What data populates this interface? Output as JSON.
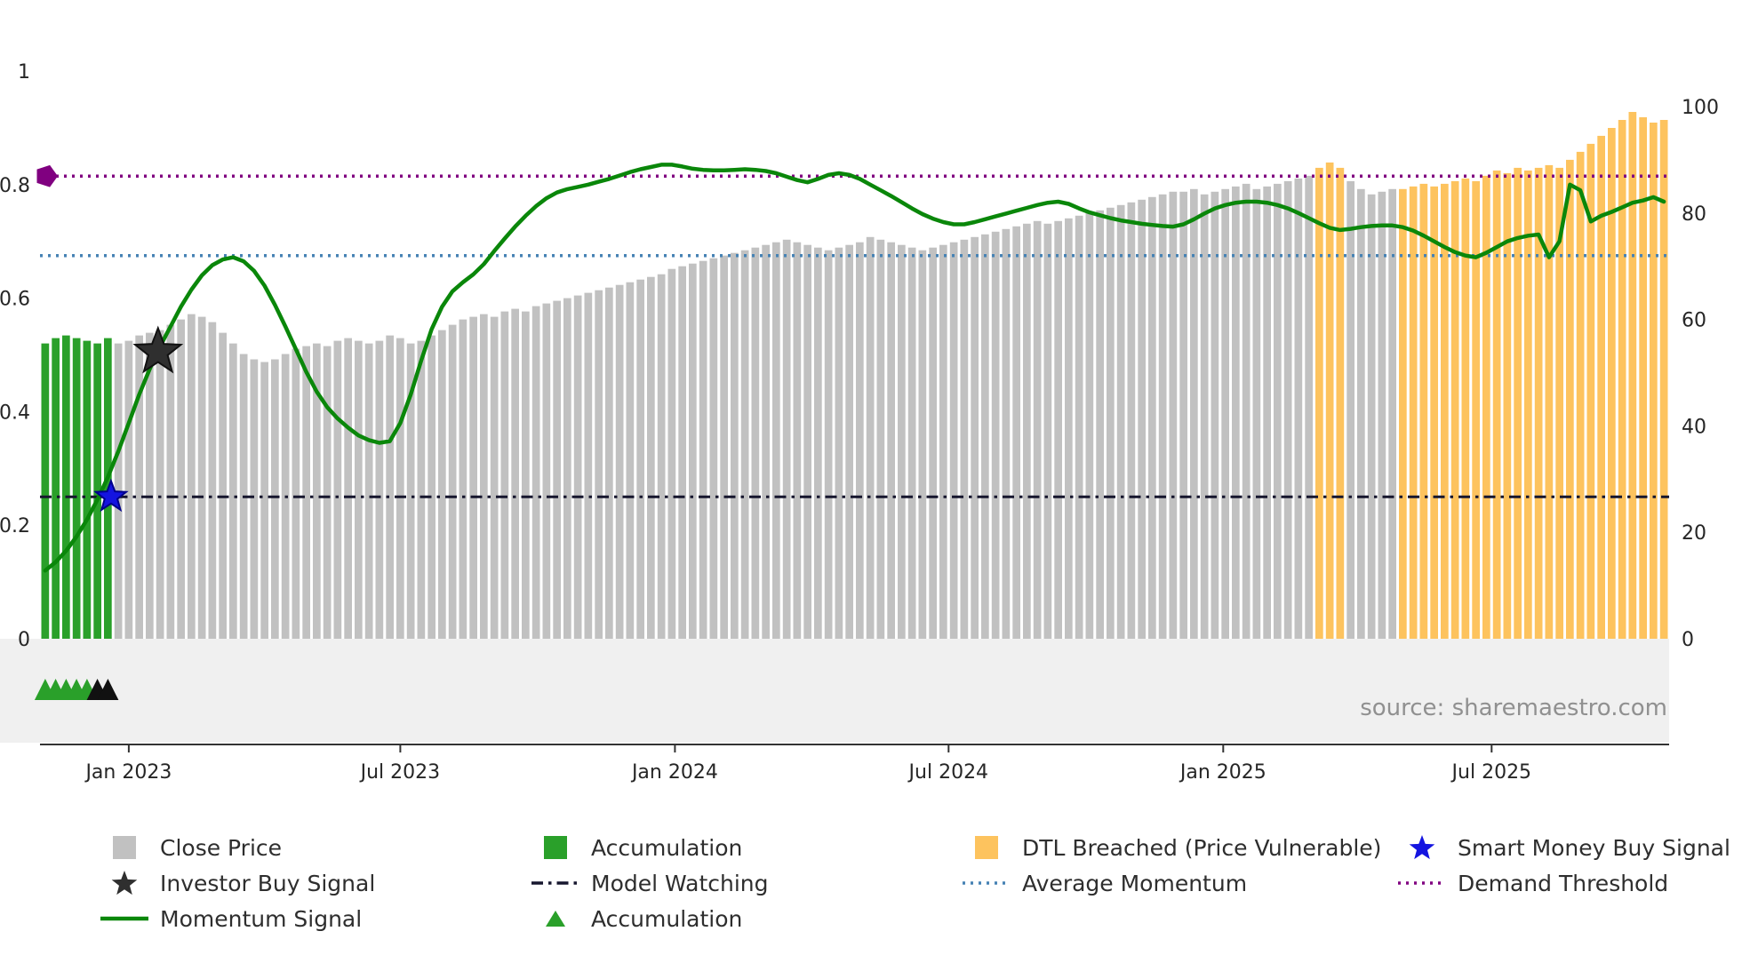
{
  "source_text": "source: sharemaestro.com",
  "colors": {
    "close": "#c1c1c1",
    "accumulation": "#2aa02a",
    "dtl": "#fdc35e",
    "momentum": "#0a870a",
    "avg-momentum": "#4682b4",
    "demand": "#800080",
    "model-watching": "#16162e",
    "smart-money": "#1414e0",
    "investor": "#2f2f2f",
    "marker-black": "#111111",
    "axis-text": "#262626",
    "strip": "#f0f0f0",
    "spine": "#333333",
    "source": "#909090"
  },
  "chart_data": {
    "type": "bar+line",
    "title": "",
    "x_axis": {
      "tick_labels": [
        "Jan 2023",
        "Jul 2023",
        "Jan 2024",
        "Jul 2024",
        "Jan 2025",
        "Jul 2025"
      ],
      "tick_positions": [
        8,
        34,
        60.3,
        86.5,
        112.8,
        138.5
      ]
    },
    "left_axis": {
      "range": [
        0,
        1
      ],
      "tick_values": [
        0,
        0.2,
        0.4,
        0.6,
        0.8,
        1
      ],
      "tick_labels": [
        "0",
        "0.2",
        "0.4",
        "0.6",
        "0.8",
        "1"
      ]
    },
    "right_axis": {
      "range": [
        0,
        100
      ],
      "tick_values": [
        0,
        20,
        40,
        60,
        80,
        100
      ],
      "tick_labels": [
        "0",
        "20",
        "40",
        "60",
        "80",
        "100"
      ]
    },
    "close_price": {
      "name": "Close Price",
      "axis": "right",
      "values": [
        55.5,
        56.5,
        57,
        56.5,
        56,
        55.5,
        56.5,
        55.5,
        56,
        57,
        57.5,
        58,
        59,
        60,
        61,
        60.5,
        59.5,
        57.5,
        55.5,
        53.5,
        52.5,
        52,
        52.5,
        53.5,
        54.5,
        55,
        55.5,
        55,
        56,
        56.5,
        56,
        55.5,
        56,
        57,
        56.5,
        55.5,
        56,
        57,
        58,
        59,
        60,
        60.5,
        61,
        60.5,
        61.5,
        62,
        61.5,
        62.5,
        63,
        63.5,
        64,
        64.5,
        65,
        65.5,
        66,
        66.5,
        67,
        67.5,
        68,
        68.5,
        69.5,
        70,
        70.5,
        71,
        71.5,
        72,
        72.5,
        73,
        73.5,
        74,
        74.5,
        75,
        74.5,
        74,
        73.5,
        73,
        73.5,
        74,
        74.5,
        75.5,
        75,
        74.5,
        74,
        73.5,
        73,
        73.5,
        74,
        74.5,
        75,
        75.5,
        76,
        76.5,
        77,
        77.5,
        78,
        78.5,
        78,
        78.5,
        79,
        79.5,
        80,
        80.5,
        81,
        81.5,
        82,
        82.5,
        83,
        83.5,
        84,
        84,
        84.5,
        83.5,
        84,
        84.5,
        85,
        85.5,
        84.5,
        85,
        85.5,
        86,
        86.5,
        87,
        88.5,
        89.5,
        88.5,
        86,
        84.5,
        83.5,
        84,
        84.5,
        84.5,
        85,
        85.5,
        85,
        85.5,
        86,
        86.5,
        86,
        87,
        88,
        87.5,
        88.5,
        88,
        88.5,
        89,
        88.5,
        90,
        91.5,
        93,
        94.5,
        96,
        97.5,
        99,
        98,
        97,
        97.5
      ],
      "segments": [
        {
          "from": 0,
          "to": 6,
          "color": "accumulation",
          "label": "Accumulation"
        },
        {
          "from": 7,
          "to": 121,
          "color": "close",
          "label": "Close Price"
        },
        {
          "from": 122,
          "to": 124,
          "color": "dtl",
          "label": "DTL Breached (Price Vulnerable)"
        },
        {
          "from": 125,
          "to": 129,
          "color": "close",
          "label": "Close Price"
        },
        {
          "from": 130,
          "to": 155,
          "color": "dtl",
          "label": "DTL Breached (Price Vulnerable)"
        }
      ]
    },
    "momentum_signal": {
      "name": "Momentum Signal",
      "axis": "left",
      "values": [
        0.12,
        0.135,
        0.155,
        0.18,
        0.21,
        0.245,
        0.285,
        0.33,
        0.38,
        0.43,
        0.475,
        0.515,
        0.55,
        0.585,
        0.615,
        0.64,
        0.658,
        0.668,
        0.672,
        0.665,
        0.648,
        0.622,
        0.588,
        0.55,
        0.51,
        0.47,
        0.435,
        0.408,
        0.388,
        0.372,
        0.358,
        0.35,
        0.345,
        0.348,
        0.38,
        0.43,
        0.49,
        0.545,
        0.585,
        0.612,
        0.628,
        0.642,
        0.66,
        0.683,
        0.705,
        0.726,
        0.745,
        0.762,
        0.776,
        0.786,
        0.792,
        0.796,
        0.8,
        0.805,
        0.81,
        0.816,
        0.822,
        0.827,
        0.831,
        0.835,
        0.835,
        0.832,
        0.828,
        0.826,
        0.825,
        0.825,
        0.826,
        0.827,
        0.826,
        0.824,
        0.82,
        0.814,
        0.808,
        0.804,
        0.81,
        0.817,
        0.82,
        0.817,
        0.81,
        0.8,
        0.79,
        0.78,
        0.769,
        0.758,
        0.748,
        0.74,
        0.734,
        0.73,
        0.73,
        0.734,
        0.739,
        0.744,
        0.749,
        0.754,
        0.759,
        0.764,
        0.768,
        0.77,
        0.766,
        0.758,
        0.751,
        0.746,
        0.741,
        0.737,
        0.734,
        0.731,
        0.729,
        0.727,
        0.726,
        0.73,
        0.739,
        0.749,
        0.758,
        0.764,
        0.768,
        0.77,
        0.77,
        0.768,
        0.764,
        0.758,
        0.75,
        0.741,
        0.732,
        0.724,
        0.72,
        0.722,
        0.725,
        0.727,
        0.728,
        0.728,
        0.725,
        0.719,
        0.71,
        0.7,
        0.69,
        0.681,
        0.675,
        0.672,
        0.68,
        0.69,
        0.7,
        0.706,
        0.71,
        0.712,
        0.672,
        0.7,
        0.8,
        0.79,
        0.735,
        0.745,
        0.752,
        0.76,
        0.768,
        0.772,
        0.778,
        0.77
      ]
    },
    "hlines": [
      {
        "label": "Demand Threshold",
        "value": 0.815,
        "axis": "left",
        "color": "demand",
        "dash": "3 6",
        "width": 3.5,
        "data_name": "demand-threshold-line"
      },
      {
        "label": "Average Momentum",
        "value": 0.675,
        "axis": "left",
        "color": "avg-momentum",
        "dash": "3 6",
        "width": 3.5,
        "data_name": "average-momentum-line"
      },
      {
        "label": "Model Watching",
        "value": 0.25,
        "axis": "left",
        "color": "model-watching",
        "dash": "13 6 3.5 6",
        "width": 3,
        "data_name": "model-watching-line"
      }
    ],
    "markers": [
      {
        "type": "star",
        "label": "Investor Buy Signal",
        "index": 10.8,
        "value": 0.505,
        "radius": 27,
        "color": "investor",
        "edge": "#111111",
        "data_name": "investor-buy-signal-marker"
      },
      {
        "type": "star",
        "label": "Smart Money Buy Signal",
        "index": 6.3,
        "value": 0.25,
        "radius": 18,
        "color": "smart-money",
        "edge": "#00008b",
        "data_name": "smart-money-buy-signal-marker"
      },
      {
        "type": "pentagon",
        "label": "Demand Threshold",
        "index": 0.1,
        "value": 0.815,
        "radius": 13,
        "color": "demand",
        "edge": "none",
        "data_name": "demand-threshold-start-marker"
      }
    ],
    "bottom_markers": [
      {
        "index": 0,
        "color": "accumulation",
        "label": "Accumulation"
      },
      {
        "index": 1,
        "color": "accumulation",
        "label": "Accumulation"
      },
      {
        "index": 2,
        "color": "accumulation",
        "label": "Accumulation"
      },
      {
        "index": 3,
        "color": "accumulation",
        "label": "Accumulation"
      },
      {
        "index": 4,
        "color": "accumulation",
        "label": "Accumulation"
      },
      {
        "index": 5,
        "color": "marker-black",
        "label": "Accumulation"
      },
      {
        "index": 6,
        "color": "marker-black",
        "label": "Accumulation"
      }
    ]
  },
  "legend": {
    "items": [
      {
        "label": "Close Price",
        "swatch": "square-gray"
      },
      {
        "label": "Accumulation",
        "swatch": "square-green"
      },
      {
        "label": "DTL Breached (Price Vulnerable)",
        "swatch": "square-orange"
      },
      {
        "label": "Smart Money Buy Signal",
        "swatch": "star-blue"
      },
      {
        "label": "Investor Buy Signal",
        "swatch": "star-black"
      },
      {
        "label": "Model Watching",
        "swatch": "dashdot-dark-line"
      },
      {
        "label": "Average Momentum",
        "swatch": "dotted-blue-line"
      },
      {
        "label": "Demand Threshold",
        "swatch": "dotted-purple-line"
      },
      {
        "label": "Momentum Signal",
        "swatch": "solid-green-line"
      },
      {
        "label": "Accumulation",
        "swatch": "triangle-green"
      }
    ]
  }
}
